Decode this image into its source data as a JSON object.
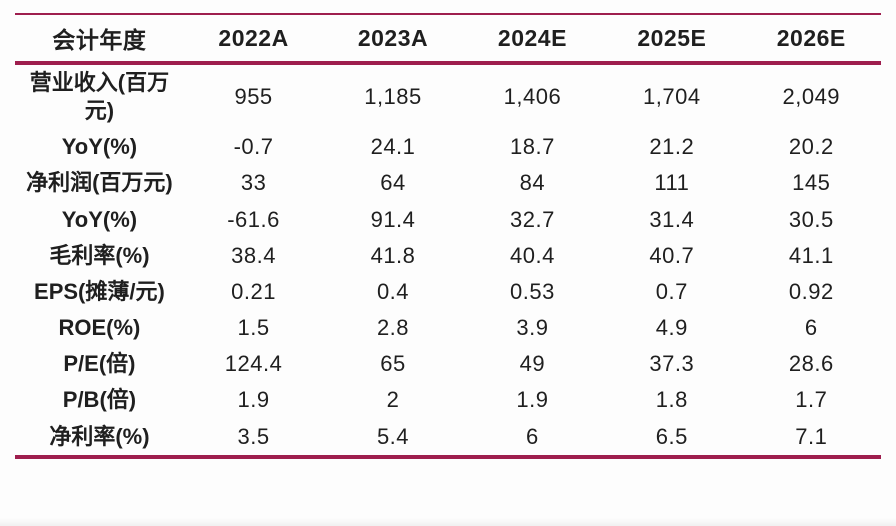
{
  "colors": {
    "rule": "#9e1e4e",
    "text": "#1f1f1f",
    "background": "#fdfdfd"
  },
  "table": {
    "header": [
      "会计年度",
      "2022A",
      "2023A",
      "2024E",
      "2025E",
      "2026E"
    ],
    "rows": [
      {
        "label": "营业收入(百万元)",
        "values": [
          "955",
          "1,185",
          "1,406",
          "1,704",
          "2,049"
        ]
      },
      {
        "label": "YoY(%)",
        "values": [
          "-0.7",
          "24.1",
          "18.7",
          "21.2",
          "20.2"
        ]
      },
      {
        "label": "净利润(百万元)",
        "values": [
          "33",
          "64",
          "84",
          "111",
          "145"
        ]
      },
      {
        "label": "YoY(%)",
        "values": [
          "-61.6",
          "91.4",
          "32.7",
          "31.4",
          "30.5"
        ]
      },
      {
        "label": "毛利率(%)",
        "values": [
          "38.4",
          "41.8",
          "40.4",
          "40.7",
          "41.1"
        ]
      },
      {
        "label": "EPS(摊薄/元)",
        "values": [
          "0.21",
          "0.4",
          "0.53",
          "0.7",
          "0.92"
        ]
      },
      {
        "label": "ROE(%)",
        "values": [
          "1.5",
          "2.8",
          "3.9",
          "4.9",
          "6"
        ]
      },
      {
        "label": "P/E(倍)",
        "values": [
          "124.4",
          "65",
          "49",
          "37.3",
          "28.6"
        ]
      },
      {
        "label": "P/B(倍)",
        "values": [
          "1.9",
          "2",
          "1.9",
          "1.8",
          "1.7"
        ]
      },
      {
        "label": "净利率(%)",
        "values": [
          "3.5",
          "5.4",
          "6",
          "6.5",
          "7.1"
        ]
      }
    ]
  },
  "chart_data": {
    "type": "table",
    "title": "",
    "columns": [
      "会计年度",
      "2022A",
      "2023A",
      "2024E",
      "2025E",
      "2026E"
    ],
    "rows": [
      [
        "营业收入(百万元)",
        955,
        1185,
        1406,
        1704,
        2049
      ],
      [
        "YoY(%)",
        -0.7,
        24.1,
        18.7,
        21.2,
        20.2
      ],
      [
        "净利润(百万元)",
        33,
        64,
        84,
        111,
        145
      ],
      [
        "YoY(%)",
        -61.6,
        91.4,
        32.7,
        31.4,
        30.5
      ],
      [
        "毛利率(%)",
        38.4,
        41.8,
        40.4,
        40.7,
        41.1
      ],
      [
        "EPS(摊薄/元)",
        0.21,
        0.4,
        0.53,
        0.7,
        0.92
      ],
      [
        "ROE(%)",
        1.5,
        2.8,
        3.9,
        4.9,
        6
      ],
      [
        "P/E(倍)",
        124.4,
        65,
        49,
        37.3,
        28.6
      ],
      [
        "P/B(倍)",
        1.9,
        2,
        1.9,
        1.8,
        1.7
      ],
      [
        "净利率(%)",
        3.5,
        5.4,
        6,
        6.5,
        7.1
      ]
    ]
  }
}
